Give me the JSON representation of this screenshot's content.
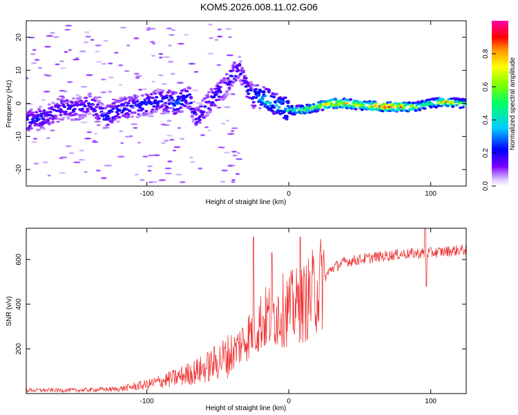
{
  "title": "KOM5.2026.008.11.02.G06",
  "chart_data": [
    {
      "type": "heatmap",
      "name": "spectrogram",
      "xlabel": "Height of straight line (km)",
      "ylabel": "Frequency (Hz)",
      "xlim": [
        -185,
        125
      ],
      "ylim": [
        -25,
        25
      ],
      "xticks": [
        -100,
        0,
        100
      ],
      "xtick_labels": [
        "-100",
        "0",
        "100"
      ],
      "yticks": [
        20,
        10,
        0,
        -10,
        -20
      ],
      "ytick_labels": [
        "20",
        "10",
        "0",
        "-10",
        "-20"
      ],
      "colorbar": {
        "label": "Normalized spectral amplitude",
        "range": [
          0,
          1
        ],
        "ticks": [
          0.0,
          0.2,
          0.4,
          0.6,
          0.8
        ],
        "tick_labels": [
          "0.0",
          "0.2",
          "0.4",
          "0.6",
          "0.8"
        ]
      },
      "ridge": [
        {
          "x": -180,
          "f": -5,
          "a": 0.22
        },
        {
          "x": -170,
          "f": -4,
          "a": 0.2
        },
        {
          "x": -160,
          "f": -1,
          "a": 0.18
        },
        {
          "x": -150,
          "f": -2,
          "a": 0.2
        },
        {
          "x": -140,
          "f": 0,
          "a": 0.18
        },
        {
          "x": -130,
          "f": -4,
          "a": 0.25
        },
        {
          "x": -120,
          "f": -2,
          "a": 0.22
        },
        {
          "x": -110,
          "f": -1,
          "a": 0.22
        },
        {
          "x": -100,
          "f": 0,
          "a": 0.25
        },
        {
          "x": -90,
          "f": 1,
          "a": 0.22
        },
        {
          "x": -80,
          "f": 0,
          "a": 0.3
        },
        {
          "x": -70,
          "f": 2,
          "a": 0.22
        },
        {
          "x": -65,
          "f": -5,
          "a": 0.2
        },
        {
          "x": -60,
          "f": -2,
          "a": 0.2
        },
        {
          "x": -55,
          "f": 1,
          "a": 0.22
        },
        {
          "x": -50,
          "f": 3,
          "a": 0.22
        },
        {
          "x": -45,
          "f": 5,
          "a": 0.2
        },
        {
          "x": -40,
          "f": 8,
          "a": 0.22
        },
        {
          "x": -35,
          "f": 11,
          "a": 0.2
        },
        {
          "x": -30,
          "f": 5,
          "a": 0.22
        },
        {
          "x": -25,
          "f": 2,
          "a": 0.25
        },
        {
          "x": -20,
          "f": 2,
          "a": 0.35
        },
        {
          "x": -15,
          "f": 1,
          "a": 0.45
        },
        {
          "x": -10,
          "f": 0,
          "a": 0.35
        },
        {
          "x": -5,
          "f": -1,
          "a": 0.35
        },
        {
          "x": 0,
          "f": -2,
          "a": 0.45
        },
        {
          "x": 10,
          "f": -2,
          "a": 0.55
        },
        {
          "x": 20,
          "f": -1,
          "a": 0.6
        },
        {
          "x": 30,
          "f": 0,
          "a": 0.8
        },
        {
          "x": 40,
          "f": 0,
          "a": 0.75
        },
        {
          "x": 50,
          "f": -0.5,
          "a": 0.7
        },
        {
          "x": 60,
          "f": -0.8,
          "a": 0.8
        },
        {
          "x": 70,
          "f": -1,
          "a": 0.9
        },
        {
          "x": 80,
          "f": -1,
          "a": 0.8
        },
        {
          "x": 90,
          "f": -1,
          "a": 0.6
        },
        {
          "x": 100,
          "f": 0,
          "a": 0.5
        },
        {
          "x": 110,
          "f": 0.5,
          "a": 0.75
        },
        {
          "x": 120,
          "f": 0,
          "a": 0.55
        }
      ]
    },
    {
      "type": "line",
      "name": "snr",
      "xlabel": "Height of straight line (km)",
      "ylabel": "SNR (v/v)",
      "xlim": [
        -185,
        125
      ],
      "ylim": [
        0,
        740
      ],
      "xticks": [
        -100,
        0,
        100
      ],
      "xtick_labels": [
        "-100",
        "0",
        "100"
      ],
      "yticks": [
        200,
        400,
        600
      ],
      "ytick_labels": [
        "200",
        "400",
        "600"
      ],
      "color": "#ee3333",
      "trend": [
        {
          "x": -185,
          "y": 15
        },
        {
          "x": -150,
          "y": 15
        },
        {
          "x": -120,
          "y": 20
        },
        {
          "x": -100,
          "y": 40
        },
        {
          "x": -80,
          "y": 70
        },
        {
          "x": -60,
          "y": 110
        },
        {
          "x": -40,
          "y": 180
        },
        {
          "x": -30,
          "y": 250
        },
        {
          "x": -20,
          "y": 320
        },
        {
          "x": -10,
          "y": 360
        },
        {
          "x": 0,
          "y": 380
        },
        {
          "x": 10,
          "y": 400
        },
        {
          "x": 20,
          "y": 470
        },
        {
          "x": 30,
          "y": 560
        },
        {
          "x": 40,
          "y": 590
        },
        {
          "x": 60,
          "y": 610
        },
        {
          "x": 80,
          "y": 625
        },
        {
          "x": 100,
          "y": 630
        },
        {
          "x": 125,
          "y": 645
        }
      ],
      "spikes": [
        {
          "x": -25,
          "y": 700
        },
        {
          "x": -12,
          "y": 630
        },
        {
          "x": 8,
          "y": 700
        },
        {
          "x": 96,
          "y": 740
        },
        {
          "x": 97,
          "y": 480
        }
      ]
    }
  ]
}
